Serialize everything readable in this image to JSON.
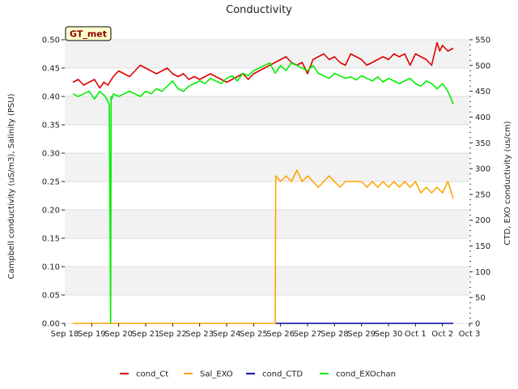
{
  "chart_data": {
    "type": "line",
    "title": "Conductivity",
    "badge": "GT_met",
    "ylabel_left": "Campbell conductivity (uS/m3), Salinity (PSU)",
    "ylabel_right": "CTD, EXO conductivity (us/cm)",
    "x_ticks": [
      "Sep 18",
      "Sep 19",
      "Sep 20",
      "Sep 21",
      "Sep 22",
      "Sep 23",
      "Sep 24",
      "Sep 25",
      "Sep 26",
      "Sep 27",
      "Sep 28",
      "Sep 29",
      "Sep 30",
      "Oct 1",
      "Oct 2",
      "Oct 3"
    ],
    "xlim": [
      0,
      15
    ],
    "ylim_left": [
      0.0,
      0.5
    ],
    "yticks_left": [
      "0.00",
      "0.05",
      "0.10",
      "0.15",
      "0.20",
      "0.25",
      "0.30",
      "0.35",
      "0.40",
      "0.45",
      "0.50"
    ],
    "ylim_right": [
      0,
      550
    ],
    "yticks_right": [
      "0",
      "50",
      "100",
      "150",
      "200",
      "250",
      "300",
      "350",
      "400",
      "450",
      "500",
      "550"
    ],
    "grid": true,
    "legend_position": "bottom",
    "series": [
      {
        "name": "cond_Ct",
        "color": "#dd0000",
        "axis": "left",
        "x": [
          0.3,
          0.5,
          0.7,
          0.9,
          1.1,
          1.3,
          1.45,
          1.6,
          1.8,
          2.0,
          2.2,
          2.4,
          2.6,
          2.8,
          3.0,
          3.2,
          3.4,
          3.6,
          3.8,
          4.0,
          4.2,
          4.4,
          4.6,
          4.8,
          5.0,
          5.2,
          5.4,
          5.6,
          5.8,
          6.0,
          6.2,
          6.4,
          6.6,
          6.8,
          7.0,
          7.2,
          7.4,
          7.6,
          7.8,
          8.0,
          8.2,
          8.4,
          8.6,
          8.8,
          9.0,
          9.2,
          9.4,
          9.6,
          9.8,
          10.0,
          10.2,
          10.4,
          10.6,
          10.8,
          11.0,
          11.2,
          11.4,
          11.6,
          11.8,
          12.0,
          12.2,
          12.4,
          12.6,
          12.8,
          13.0,
          13.2,
          13.4,
          13.6,
          13.8,
          13.9,
          14.0,
          14.2,
          14.4
        ],
        "y": [
          0.425,
          0.43,
          0.42,
          0.425,
          0.43,
          0.415,
          0.425,
          0.42,
          0.435,
          0.445,
          0.44,
          0.435,
          0.445,
          0.455,
          0.45,
          0.445,
          0.44,
          0.445,
          0.45,
          0.44,
          0.435,
          0.44,
          0.43,
          0.435,
          0.43,
          0.435,
          0.44,
          0.435,
          0.43,
          0.425,
          0.43,
          0.435,
          0.44,
          0.43,
          0.44,
          0.445,
          0.45,
          0.455,
          0.46,
          0.465,
          0.47,
          0.46,
          0.455,
          0.46,
          0.44,
          0.465,
          0.47,
          0.475,
          0.465,
          0.47,
          0.46,
          0.455,
          0.475,
          0.47,
          0.465,
          0.455,
          0.46,
          0.465,
          0.47,
          0.465,
          0.475,
          0.47,
          0.475,
          0.455,
          0.475,
          0.47,
          0.465,
          0.455,
          0.495,
          0.48,
          0.49,
          0.48,
          0.485
        ]
      },
      {
        "name": "Sal_EXO",
        "color": "#ffa500",
        "axis": "left",
        "x": [
          0.3,
          2.0,
          4.0,
          6.0,
          7.8,
          7.82,
          8.0,
          8.2,
          8.4,
          8.6,
          8.8,
          9.0,
          9.2,
          9.4,
          9.6,
          9.8,
          10.0,
          10.2,
          10.4,
          10.6,
          10.8,
          11.0,
          11.2,
          11.4,
          11.6,
          11.8,
          12.0,
          12.2,
          12.4,
          12.6,
          12.8,
          13.0,
          13.2,
          13.4,
          13.6,
          13.8,
          14.0,
          14.2,
          14.4
        ],
        "y": [
          0.0,
          0.0,
          0.0,
          0.0,
          0.0,
          0.26,
          0.25,
          0.26,
          0.25,
          0.27,
          0.25,
          0.26,
          0.25,
          0.24,
          0.25,
          0.26,
          0.25,
          0.24,
          0.25,
          0.25,
          0.25,
          0.25,
          0.24,
          0.25,
          0.24,
          0.25,
          0.24,
          0.25,
          0.24,
          0.25,
          0.24,
          0.25,
          0.23,
          0.24,
          0.23,
          0.24,
          0.23,
          0.25,
          0.22
        ]
      },
      {
        "name": "cond_CTD",
        "color": "#0000aa",
        "axis": "left",
        "x": [
          7.82,
          14.4
        ],
        "y": [
          0.0,
          0.0
        ]
      },
      {
        "name": "cond_EXOchan",
        "color": "#00ee00",
        "axis": "right",
        "x": [
          0.3,
          0.5,
          0.7,
          0.9,
          1.1,
          1.3,
          1.5,
          1.65,
          1.7,
          1.72,
          1.75,
          1.8,
          2.0,
          2.2,
          2.4,
          2.6,
          2.8,
          3.0,
          3.2,
          3.4,
          3.6,
          3.8,
          4.0,
          4.2,
          4.4,
          4.6,
          4.8,
          5.0,
          5.2,
          5.4,
          5.6,
          5.8,
          6.0,
          6.2,
          6.4,
          6.6,
          6.8,
          7.0,
          7.2,
          7.4,
          7.6,
          7.8,
          8.0,
          8.2,
          8.4,
          8.6,
          8.8,
          9.0,
          9.2,
          9.4,
          9.6,
          9.8,
          10.0,
          10.2,
          10.4,
          10.6,
          10.8,
          11.0,
          11.2,
          11.4,
          11.6,
          11.8,
          12.0,
          12.2,
          12.4,
          12.6,
          12.8,
          13.0,
          13.2,
          13.4,
          13.6,
          13.8,
          14.0,
          14.2,
          14.4
        ],
        "y": [
          445,
          440,
          445,
          450,
          435,
          450,
          440,
          425,
          0,
          440,
          435,
          445,
          440,
          445,
          450,
          445,
          440,
          450,
          445,
          455,
          450,
          460,
          470,
          455,
          450,
          460,
          465,
          470,
          465,
          475,
          470,
          465,
          475,
          480,
          470,
          485,
          480,
          490,
          495,
          500,
          505,
          485,
          500,
          490,
          505,
          500,
          495,
          490,
          500,
          485,
          480,
          475,
          485,
          480,
          475,
          478,
          472,
          480,
          475,
          470,
          478,
          468,
          475,
          470,
          465,
          470,
          475,
          465,
          460,
          470,
          465,
          455,
          465,
          450,
          425
        ]
      }
    ]
  }
}
